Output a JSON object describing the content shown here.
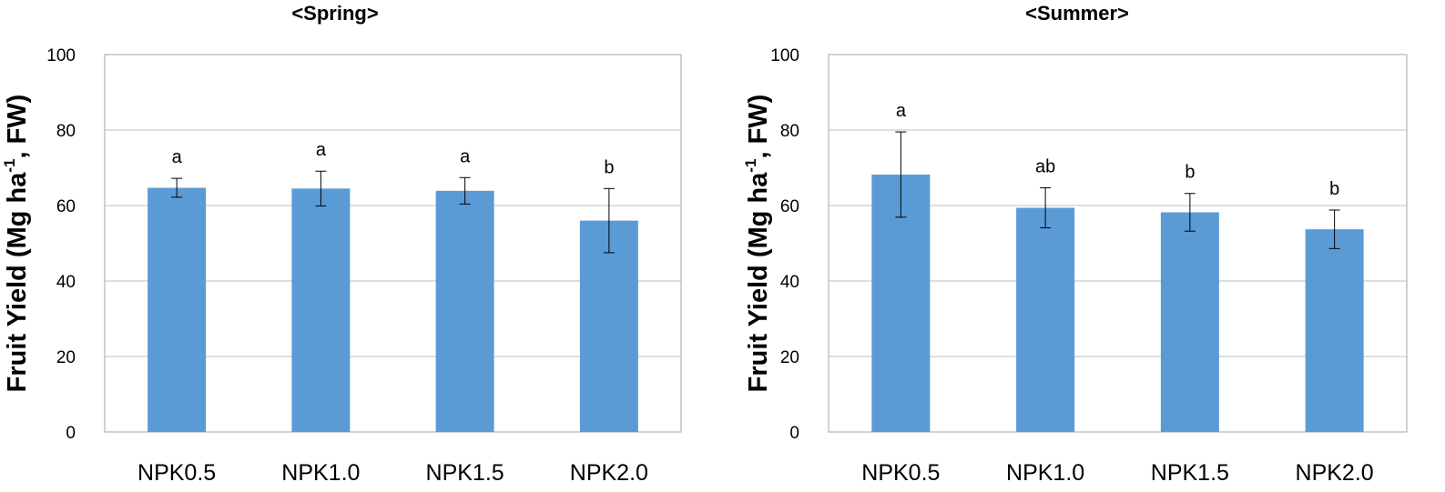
{
  "colors": {
    "bar": "#5b9bd5",
    "grid": "#bfbfbf",
    "frame": "#a6a6a6"
  },
  "chart_data": [
    {
      "type": "bar",
      "title": "<Spring>",
      "xlabel": "",
      "ylabel": "Fruit Yield (Mg ha",
      "ylabel_sup": "-1",
      "ylabel_tail": ", FW)",
      "ylim": [
        0,
        100
      ],
      "yticks": [
        0,
        20,
        40,
        60,
        80,
        100
      ],
      "grid": true,
      "categories": [
        "NPK0.5",
        "NPK1.0",
        "NPK1.5",
        "NPK2.0"
      ],
      "values": [
        64.7,
        64.5,
        63.9,
        56.0
      ],
      "errors": [
        2.5,
        4.6,
        3.5,
        8.5
      ],
      "significance": [
        "a",
        "a",
        "a",
        "b"
      ]
    },
    {
      "type": "bar",
      "title": "<Summer>",
      "xlabel": "",
      "ylabel": "Fruit Yield (Mg ha",
      "ylabel_sup": "-1",
      "ylabel_tail": ", FW)",
      "ylim": [
        0,
        100
      ],
      "yticks": [
        0,
        20,
        40,
        60,
        80,
        100
      ],
      "grid": true,
      "categories": [
        "NPK0.5",
        "NPK1.0",
        "NPK1.5",
        "NPK2.0"
      ],
      "values": [
        68.2,
        59.4,
        58.2,
        53.7
      ],
      "errors": [
        11.3,
        5.3,
        5.0,
        5.1
      ],
      "significance": [
        "a",
        "ab",
        "b",
        "b"
      ]
    }
  ]
}
